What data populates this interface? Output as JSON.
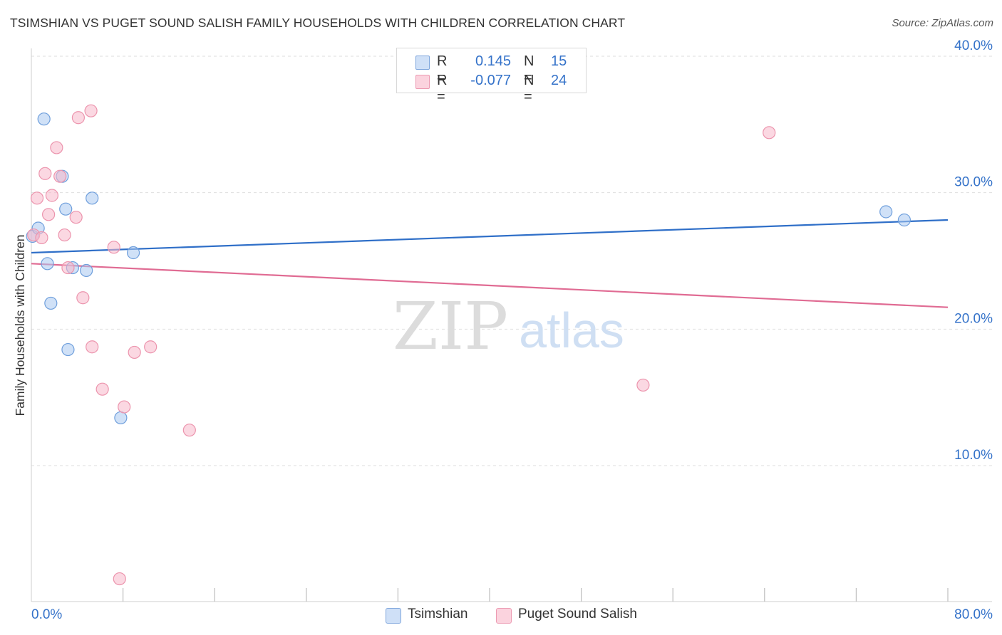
{
  "header": {
    "title": "TSIMSHIAN VS PUGET SOUND SALISH FAMILY HOUSEHOLDS WITH CHILDREN CORRELATION CHART",
    "source": "Source: ZipAtlas.com"
  },
  "watermark": {
    "zip": "ZIP",
    "atlas": "atlas"
  },
  "legend": {
    "rows": [
      {
        "r_label": "R =",
        "r_value": "0.145",
        "n_label": "N =",
        "n_value": "15",
        "color": "#a9c8f0"
      },
      {
        "r_label": "R =",
        "r_value": "-0.077",
        "n_label": "N =",
        "n_value": "24",
        "color": "#f7b8ca"
      }
    ]
  },
  "bottom_legend": [
    {
      "label": "Tsimshian",
      "color": "#a9c8f0"
    },
    {
      "label": "Puget Sound Salish",
      "color": "#f7b8ca"
    }
  ],
  "chart_data": {
    "type": "scatter",
    "title": "TSIMSHIAN VS PUGET SOUND SALISH FAMILY HOUSEHOLDS WITH CHILDREN CORRELATION CHART",
    "xlabel": "",
    "ylabel": "Family Households with Children",
    "xlim": [
      0,
      80
    ],
    "ylim": [
      0,
      42
    ],
    "x_tick_labels": [
      "0.0%",
      "80.0%"
    ],
    "y_ticks": [
      10,
      20,
      30,
      40
    ],
    "y_tick_labels": [
      "10.0%",
      "20.0%",
      "30.0%",
      "40.0%"
    ],
    "grid": true,
    "legend_position": "top-center",
    "series": [
      {
        "name": "Tsimshian",
        "color": "#a9c8f0",
        "stroke": "#6f9fdc",
        "line_color": "#2f6fc8",
        "trend": {
          "x": [
            0,
            80
          ],
          "y": [
            25.6,
            28.0
          ]
        },
        "points": [
          {
            "x": 0.1,
            "y": 26.8
          },
          {
            "x": 0.6,
            "y": 27.4
          },
          {
            "x": 1.1,
            "y": 35.4
          },
          {
            "x": 1.4,
            "y": 24.8
          },
          {
            "x": 1.7,
            "y": 21.9
          },
          {
            "x": 2.7,
            "y": 31.2
          },
          {
            "x": 3.0,
            "y": 28.8
          },
          {
            "x": 3.2,
            "y": 18.5
          },
          {
            "x": 3.6,
            "y": 24.5
          },
          {
            "x": 4.8,
            "y": 24.3
          },
          {
            "x": 5.3,
            "y": 29.6
          },
          {
            "x": 7.8,
            "y": 13.5
          },
          {
            "x": 8.9,
            "y": 25.6
          },
          {
            "x": 74.6,
            "y": 28.6
          },
          {
            "x": 76.2,
            "y": 28.0
          }
        ]
      },
      {
        "name": "Puget Sound Salish",
        "color": "#f7b8ca",
        "stroke": "#ec94ad",
        "line_color": "#e06b93",
        "trend": {
          "x": [
            0,
            80
          ],
          "y": [
            24.8,
            21.6
          ]
        },
        "points": [
          {
            "x": 0.2,
            "y": 26.9
          },
          {
            "x": 0.5,
            "y": 29.6
          },
          {
            "x": 0.9,
            "y": 26.7
          },
          {
            "x": 1.2,
            "y": 31.4
          },
          {
            "x": 1.5,
            "y": 28.4
          },
          {
            "x": 1.8,
            "y": 29.8
          },
          {
            "x": 2.2,
            "y": 33.3
          },
          {
            "x": 2.5,
            "y": 31.2
          },
          {
            "x": 2.9,
            "y": 26.9
          },
          {
            "x": 3.2,
            "y": 24.5
          },
          {
            "x": 3.9,
            "y": 28.2
          },
          {
            "x": 4.1,
            "y": 35.5
          },
          {
            "x": 4.5,
            "y": 22.3
          },
          {
            "x": 5.2,
            "y": 36.0
          },
          {
            "x": 5.3,
            "y": 18.7
          },
          {
            "x": 6.2,
            "y": 15.6
          },
          {
            "x": 7.2,
            "y": 26.0
          },
          {
            "x": 7.7,
            "y": 1.7
          },
          {
            "x": 8.1,
            "y": 14.3
          },
          {
            "x": 9.0,
            "y": 18.3
          },
          {
            "x": 10.4,
            "y": 18.7
          },
          {
            "x": 13.8,
            "y": 12.6
          },
          {
            "x": 53.4,
            "y": 15.9
          },
          {
            "x": 64.4,
            "y": 34.4
          }
        ]
      }
    ]
  }
}
